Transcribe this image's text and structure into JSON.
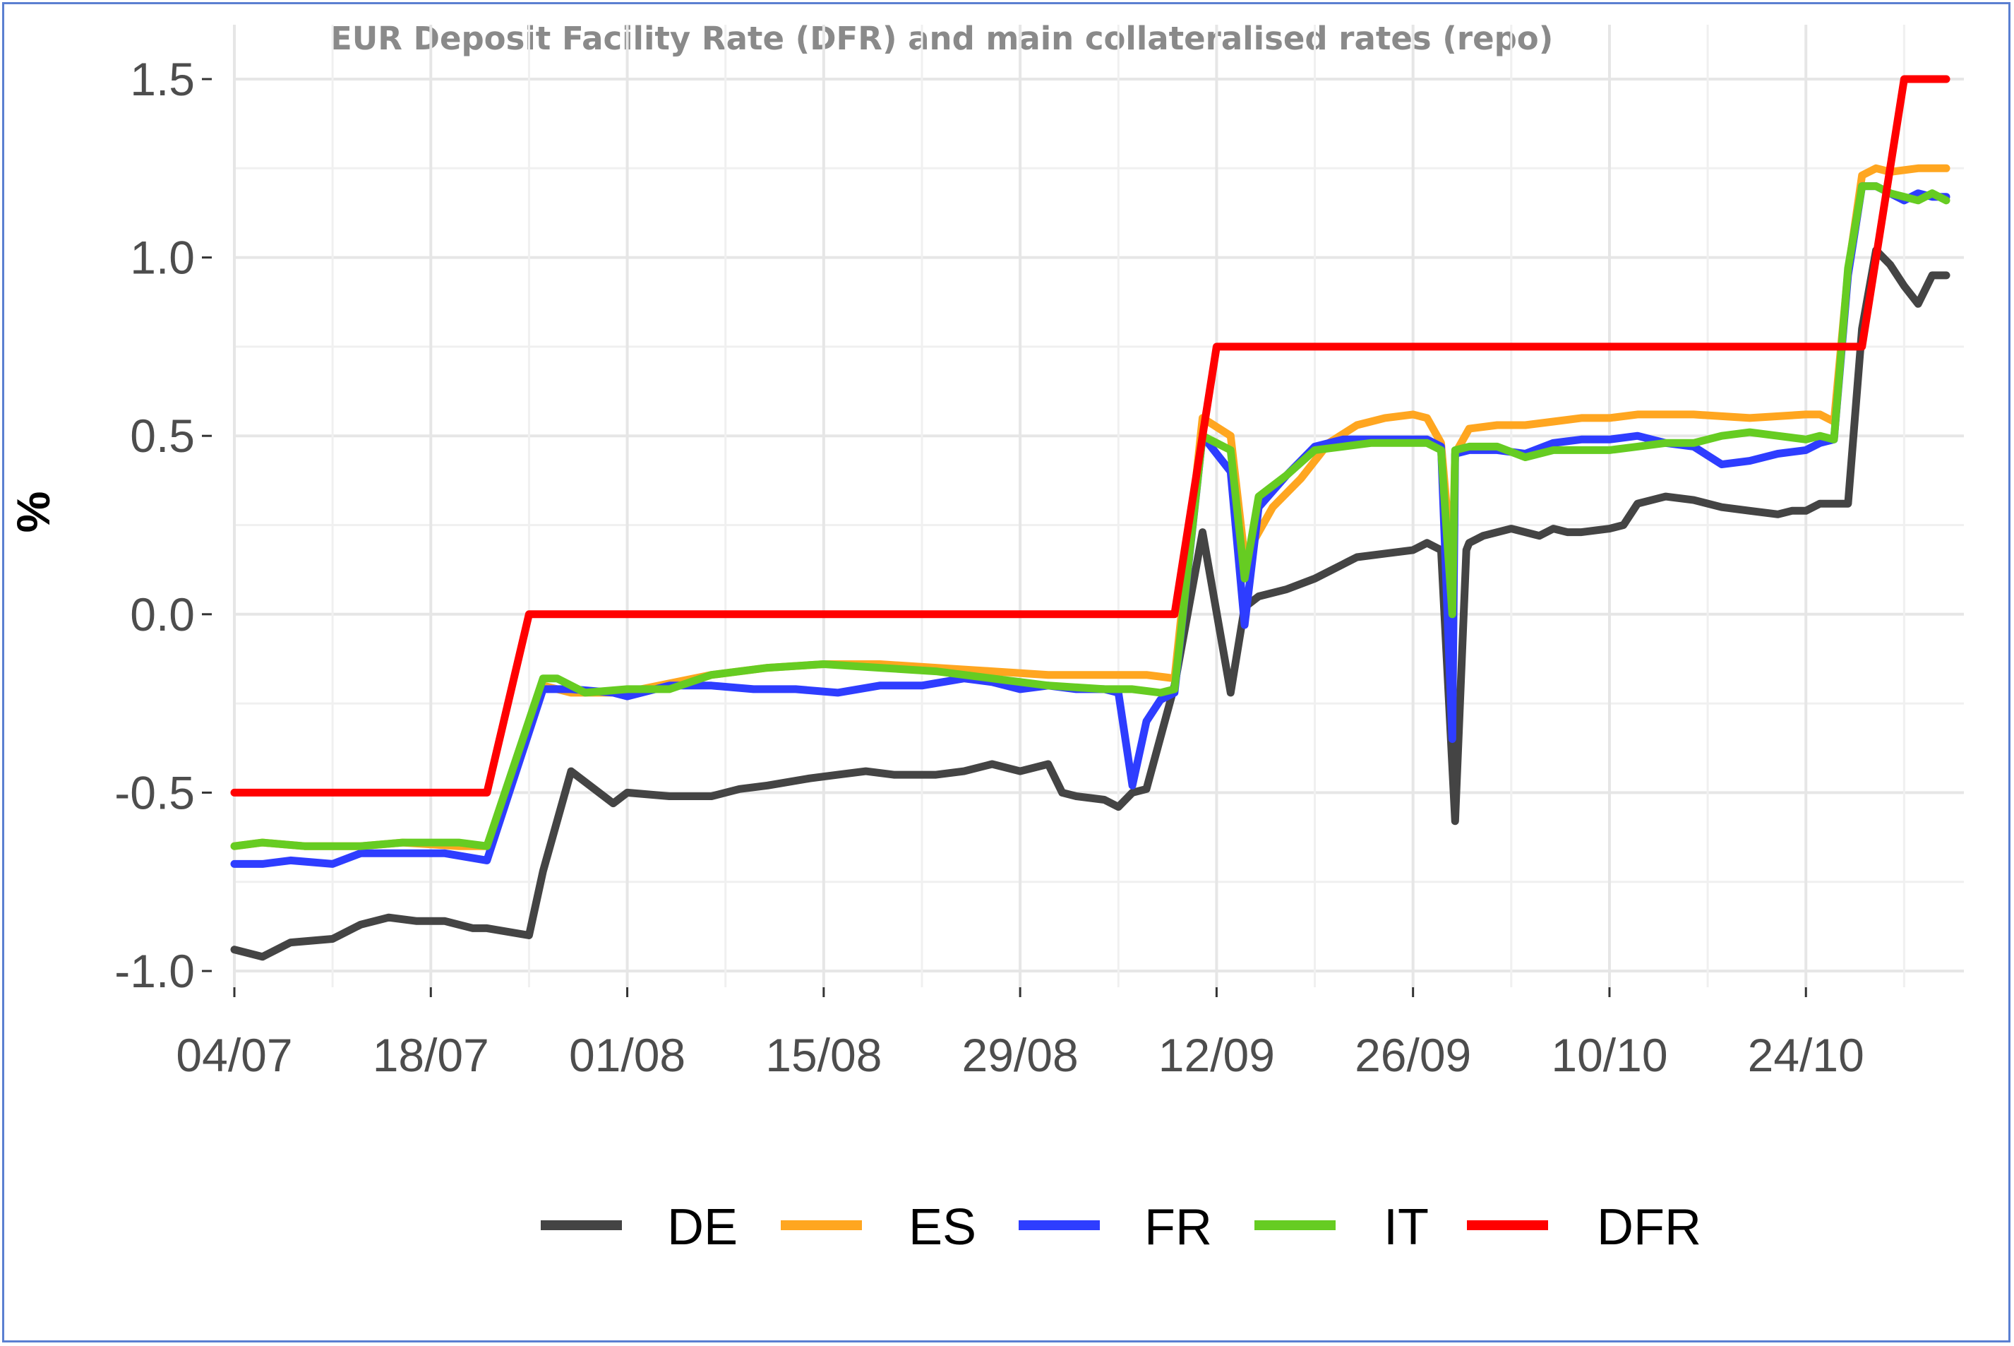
{
  "chart_data": {
    "type": "line",
    "title": "EUR Deposit Facility Rate (DFR) and main collateralised rates (repo)",
    "xlabel": "",
    "ylabel": "%",
    "ylim": [
      -1.0,
      1.5
    ],
    "yticks": [
      "-1.0",
      "-0.5",
      "0.0",
      "0.5",
      "1.0",
      "1.5"
    ],
    "xlim": [
      0,
      122
    ],
    "xticks": [
      {
        "label": "04/07",
        "day": 0
      },
      {
        "label": "18/07",
        "day": 14
      },
      {
        "label": "01/08",
        "day": 28
      },
      {
        "label": "15/08",
        "day": 42
      },
      {
        "label": "29/08",
        "day": 56
      },
      {
        "label": "12/09",
        "day": 70
      },
      {
        "label": "26/09",
        "day": 84
      },
      {
        "label": "10/10",
        "day": 98
      },
      {
        "label": "24/10",
        "day": 112
      }
    ],
    "grid": true,
    "legend_position": "bottom",
    "x_note": "x values are dates expressed as day offsets from 04/07 (2022)",
    "series": [
      {
        "name": "DE",
        "color": "#444444",
        "x": [
          0,
          2,
          4,
          7,
          9,
          11,
          13,
          15,
          17,
          18,
          21,
          22,
          24,
          27,
          28,
          31,
          34,
          36,
          38,
          41,
          43,
          45,
          47,
          50,
          52,
          54,
          56,
          58,
          59,
          60,
          62,
          63,
          64,
          65,
          67,
          69,
          71,
          72,
          73,
          75,
          77,
          79,
          80,
          82,
          84,
          85,
          86,
          87,
          87.8,
          88,
          89,
          91,
          93,
          94,
          95,
          96,
          98,
          99,
          100,
          102,
          104,
          106,
          108,
          110,
          111,
          112,
          113,
          114,
          115,
          116,
          117,
          118,
          119,
          120,
          121,
          122
        ],
        "values": [
          -0.94,
          -0.96,
          -0.92,
          -0.91,
          -0.87,
          -0.85,
          -0.86,
          -0.86,
          -0.88,
          -0.88,
          -0.9,
          -0.72,
          -0.44,
          -0.53,
          -0.5,
          -0.51,
          -0.51,
          -0.49,
          -0.48,
          -0.46,
          -0.45,
          -0.44,
          -0.45,
          -0.45,
          -0.44,
          -0.42,
          -0.44,
          -0.42,
          -0.5,
          -0.51,
          -0.52,
          -0.54,
          -0.5,
          -0.49,
          -0.2,
          0.23,
          -0.22,
          0.02,
          0.05,
          0.07,
          0.1,
          0.14,
          0.16,
          0.17,
          0.18,
          0.2,
          0.18,
          -0.58,
          0.18,
          0.2,
          0.22,
          0.24,
          0.22,
          0.24,
          0.23,
          0.23,
          0.24,
          0.25,
          0.31,
          0.33,
          0.32,
          0.3,
          0.29,
          0.28,
          0.29,
          0.29,
          0.31,
          0.31,
          0.31,
          0.8,
          1.02,
          0.98,
          0.92,
          0.87,
          0.95,
          0.95
        ]
      },
      {
        "name": "ES",
        "color": "#ffa620",
        "x": [
          0,
          2,
          5,
          9,
          12,
          16,
          18,
          22,
          24,
          27,
          29,
          34,
          38,
          42,
          46,
          50,
          54,
          58,
          62,
          65,
          67,
          69,
          71,
          72,
          74,
          76,
          78,
          80,
          82,
          84,
          85,
          86,
          86.8,
          87,
          88,
          90,
          92,
          94,
          96,
          98,
          100,
          104,
          108,
          112,
          113,
          114,
          115,
          116,
          117,
          118,
          120,
          122
        ],
        "values": [
          -0.65,
          -0.64,
          -0.65,
          -0.65,
          -0.64,
          -0.65,
          -0.65,
          -0.2,
          -0.22,
          -0.22,
          -0.21,
          -0.17,
          -0.15,
          -0.14,
          -0.14,
          -0.15,
          -0.16,
          -0.17,
          -0.17,
          -0.17,
          -0.18,
          0.55,
          0.5,
          0.16,
          0.3,
          0.38,
          0.48,
          0.53,
          0.55,
          0.56,
          0.55,
          0.48,
          0.12,
          0.45,
          0.52,
          0.53,
          0.53,
          0.54,
          0.55,
          0.55,
          0.56,
          0.56,
          0.55,
          0.56,
          0.56,
          0.54,
          0.96,
          1.23,
          1.25,
          1.24,
          1.25,
          1.25
        ]
      },
      {
        "name": "FR",
        "color": "#2e3dff",
        "x": [
          0,
          2,
          4,
          7,
          9,
          11,
          13,
          15,
          18,
          22,
          24,
          27,
          28,
          31,
          34,
          37,
          40,
          43,
          46,
          49,
          52,
          54,
          56,
          58,
          60,
          62,
          63,
          64,
          65,
          66,
          67,
          69,
          71,
          72,
          73,
          75,
          77,
          79,
          81,
          83,
          85,
          86,
          86.8,
          87,
          88,
          90,
          92,
          94,
          96,
          98,
          100,
          102,
          104,
          106,
          108,
          110,
          112,
          113,
          114,
          115,
          116,
          117,
          118,
          119,
          120,
          121,
          122
        ],
        "values": [
          -0.7,
          -0.7,
          -0.69,
          -0.7,
          -0.67,
          -0.67,
          -0.67,
          -0.67,
          -0.69,
          -0.21,
          -0.21,
          -0.22,
          -0.23,
          -0.2,
          -0.2,
          -0.21,
          -0.21,
          -0.22,
          -0.2,
          -0.2,
          -0.18,
          -0.19,
          -0.21,
          -0.2,
          -0.21,
          -0.21,
          -0.22,
          -0.48,
          -0.3,
          -0.24,
          -0.22,
          0.5,
          0.4,
          -0.03,
          0.3,
          0.39,
          0.47,
          0.49,
          0.49,
          0.49,
          0.49,
          0.47,
          -0.35,
          0.45,
          0.46,
          0.46,
          0.45,
          0.48,
          0.49,
          0.49,
          0.5,
          0.48,
          0.47,
          0.42,
          0.43,
          0.45,
          0.46,
          0.48,
          0.49,
          0.95,
          1.2,
          1.2,
          1.18,
          1.16,
          1.18,
          1.17,
          1.17
        ]
      },
      {
        "name": "IT",
        "color": "#66cc22",
        "x": [
          0,
          2,
          5,
          9,
          12,
          16,
          18,
          22,
          23,
          25,
          28,
          31,
          34,
          38,
          42,
          46,
          50,
          54,
          58,
          62,
          64,
          66,
          67,
          69,
          71,
          72,
          73,
          75,
          77,
          79,
          81,
          83,
          85,
          86,
          86.8,
          87,
          88,
          90,
          92,
          94,
          96,
          98,
          100,
          102,
          104,
          106,
          108,
          110,
          112,
          113,
          114,
          115,
          116,
          117,
          118,
          119,
          120,
          121,
          122
        ],
        "values": [
          -0.65,
          -0.64,
          -0.65,
          -0.65,
          -0.64,
          -0.64,
          -0.65,
          -0.18,
          -0.18,
          -0.22,
          -0.21,
          -0.21,
          -0.17,
          -0.15,
          -0.14,
          -0.15,
          -0.16,
          -0.18,
          -0.2,
          -0.21,
          -0.21,
          -0.22,
          -0.21,
          0.5,
          0.46,
          0.1,
          0.33,
          0.39,
          0.46,
          0.47,
          0.48,
          0.48,
          0.48,
          0.46,
          0.0,
          0.46,
          0.47,
          0.47,
          0.44,
          0.46,
          0.46,
          0.46,
          0.47,
          0.48,
          0.48,
          0.5,
          0.51,
          0.5,
          0.49,
          0.5,
          0.49,
          0.97,
          1.2,
          1.2,
          1.18,
          1.17,
          1.16,
          1.18,
          1.16
        ]
      },
      {
        "name": "DFR",
        "color": "#ff0000",
        "x": [
          0,
          18,
          21,
          24,
          67,
          70,
          116,
          119,
          122
        ],
        "values": [
          -0.5,
          -0.5,
          0.0,
          0.0,
          0.0,
          0.75,
          0.75,
          1.5,
          1.5
        ]
      }
    ]
  }
}
